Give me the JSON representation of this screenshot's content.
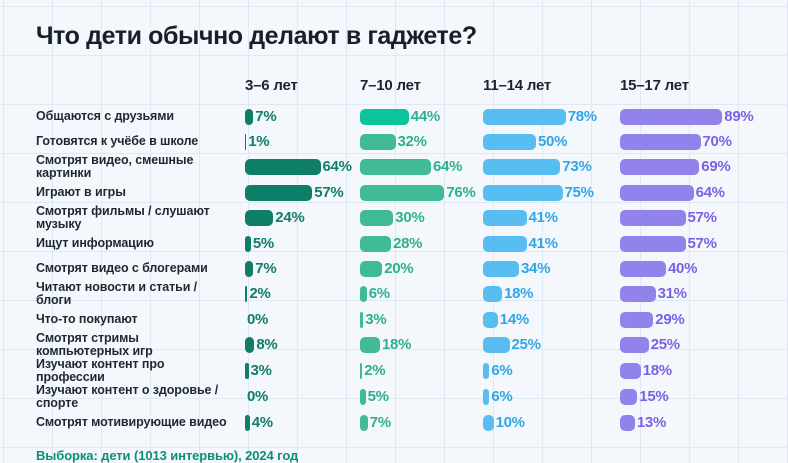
{
  "page": {
    "title": "Что дети обычно делают в гаджете?",
    "footer": "Выборка: дети (1013 интервью), 2024 год"
  },
  "colors": {
    "background": "#F4F8FC",
    "grid_line": "#DEEAF3",
    "title_text": "#171F29",
    "row_label_text": "#1E2833",
    "footer_text": "#0E8F75"
  },
  "chart_data": {
    "type": "bar",
    "orientation": "horizontal",
    "unit": "%",
    "value_range": [
      0,
      100
    ],
    "grid": "background graph paper, no axis lines",
    "legend_position": "column headers across top",
    "title": "Что дети обычно делают в гаджете?",
    "footnote": "Выборка: дети (1013 интервью), 2024 год",
    "categories": [
      "Общаются с друзьями",
      "Готовятся к учёбе в школе",
      "Смотрят видео, смешные картинки",
      "Играют в игры",
      "Смотрят фильмы / слушают музыку",
      "Ищут информацию",
      "Смотрят видео с блогерами",
      "Читают новости и статьи / блоги",
      "Что-то покупают",
      "Смотрят стримы компьютерных игр",
      "Изучают контент про профессии",
      "Изучают контент о здоровье / спорте",
      "Смотрят мотивирующие видео"
    ],
    "series": [
      {
        "name": "3–6 лет",
        "bar_color": "#0F7E67",
        "text_color": "#0F7E67",
        "values": [
          7,
          1,
          64,
          57,
          24,
          5,
          7,
          2,
          0,
          8,
          3,
          0,
          4
        ]
      },
      {
        "name": "7–10 лет",
        "bar_color": "#41BA97",
        "text_color": "#2EAF8D",
        "bar_color_overrides": {
          "0": "#0DC39B"
        },
        "values": [
          44,
          32,
          64,
          76,
          30,
          28,
          20,
          6,
          3,
          18,
          2,
          5,
          7
        ]
      },
      {
        "name": "11–14 лет",
        "bar_color": "#58BEF2",
        "text_color": "#30A5E8",
        "values": [
          78,
          50,
          73,
          75,
          41,
          41,
          34,
          18,
          14,
          25,
          6,
          6,
          10
        ]
      },
      {
        "name": "15–17 лет",
        "bar_color": "#9183EB",
        "text_color": "#7B61E4",
        "values": [
          89,
          70,
          69,
          64,
          57,
          57,
          40,
          31,
          29,
          25,
          18,
          15,
          13
        ]
      }
    ]
  }
}
